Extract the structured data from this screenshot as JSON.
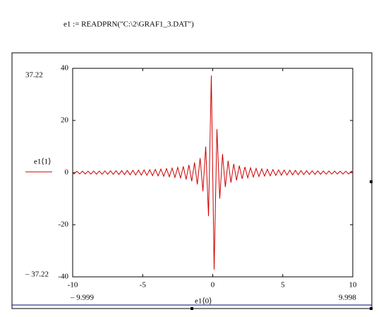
{
  "formula": "e1 := READPRN(\"C:\\2\\GRAF1_3.DAT\")",
  "chart_data": {
    "type": "line",
    "x_label": "e1⟨0⟩",
    "limit_labels": {
      "ymax": "37.22",
      "ymin": "– 37.22",
      "xmin": "– 9.999",
      "xmax": "9.998"
    },
    "x": [
      -9.999,
      -9.9,
      -9.7,
      -9.5,
      -9.3,
      -9.1,
      -8.9,
      -8.7,
      -8.5,
      -8.3,
      -8.1,
      -7.9,
      -7.7,
      -7.5,
      -7.3,
      -7.1,
      -6.9,
      -6.7,
      -6.5,
      -6.3,
      -6.1,
      -5.9,
      -5.7,
      -5.5,
      -5.3,
      -5.1,
      -4.9,
      -4.7,
      -4.5,
      -4.3,
      -4.1,
      -3.9,
      -3.7,
      -3.5,
      -3.3,
      -3.1,
      -2.9,
      -2.7,
      -2.5,
      -2.3,
      -2.1,
      -1.9,
      -1.7,
      -1.5,
      -1.3,
      -1.1,
      -0.9,
      -0.7,
      -0.5,
      -0.3,
      -0.1,
      0.1,
      0.3,
      0.5,
      0.7,
      0.9,
      1.1,
      1.3,
      1.5,
      1.7,
      1.9,
      2.1,
      2.3,
      2.5,
      2.7,
      2.9,
      3.1,
      3.3,
      3.5,
      3.7,
      3.9,
      4.1,
      4.3,
      4.5,
      4.7,
      4.9,
      5.1,
      5.3,
      5.5,
      5.7,
      5.9,
      6.1,
      6.3,
      6.5,
      6.7,
      6.9,
      7.1,
      7.3,
      7.5,
      7.7,
      7.9,
      8.1,
      8.3,
      8.5,
      8.7,
      8.9,
      9.1,
      9.3,
      9.5,
      9.7,
      9.9,
      9.998
    ],
    "series": [
      {
        "name": "e1⟨1⟩",
        "color": "#cc0000",
        "values": [
          0,
          -0.51,
          0.52,
          -0.53,
          0.54,
          -0.55,
          0.56,
          -0.57,
          0.59,
          -0.6,
          0.62,
          -0.63,
          0.65,
          -0.67,
          0.68,
          -0.7,
          0.72,
          -0.75,
          0.77,
          -0.79,
          0.82,
          -0.85,
          0.88,
          -0.91,
          0.94,
          -0.98,
          1.02,
          -1.06,
          1.11,
          -1.16,
          1.22,
          -1.28,
          1.35,
          -1.43,
          1.52,
          -1.61,
          1.72,
          -1.85,
          2,
          -2.17,
          2.38,
          -2.63,
          2.94,
          -3.33,
          3.85,
          -4.55,
          5.56,
          -7.14,
          10,
          -16.67,
          37.22,
          -37.22,
          16.67,
          -10,
          7.14,
          -5.56,
          4.55,
          -3.85,
          3.33,
          -2.94,
          2.63,
          -2.38,
          2.17,
          -2,
          1.85,
          -1.72,
          1.61,
          -1.52,
          1.43,
          -1.35,
          1.28,
          -1.22,
          1.16,
          -1.11,
          1.06,
          -1.02,
          0.98,
          -0.94,
          0.91,
          -0.88,
          0.85,
          -0.82,
          0.79,
          -0.77,
          0.75,
          -0.72,
          0.7,
          -0.68,
          0.67,
          -0.65,
          0.63,
          -0.62,
          0.6,
          -0.59,
          0.57,
          -0.56,
          0.55,
          -0.54,
          0.53,
          -0.52,
          0.51,
          0
        ]
      }
    ],
    "xlim": [
      -10,
      10
    ],
    "xticks": [
      -10,
      -5,
      0,
      5,
      10
    ],
    "ylim": [
      -40,
      40
    ],
    "yticks": [
      -40,
      -20,
      0,
      20,
      40
    ]
  }
}
